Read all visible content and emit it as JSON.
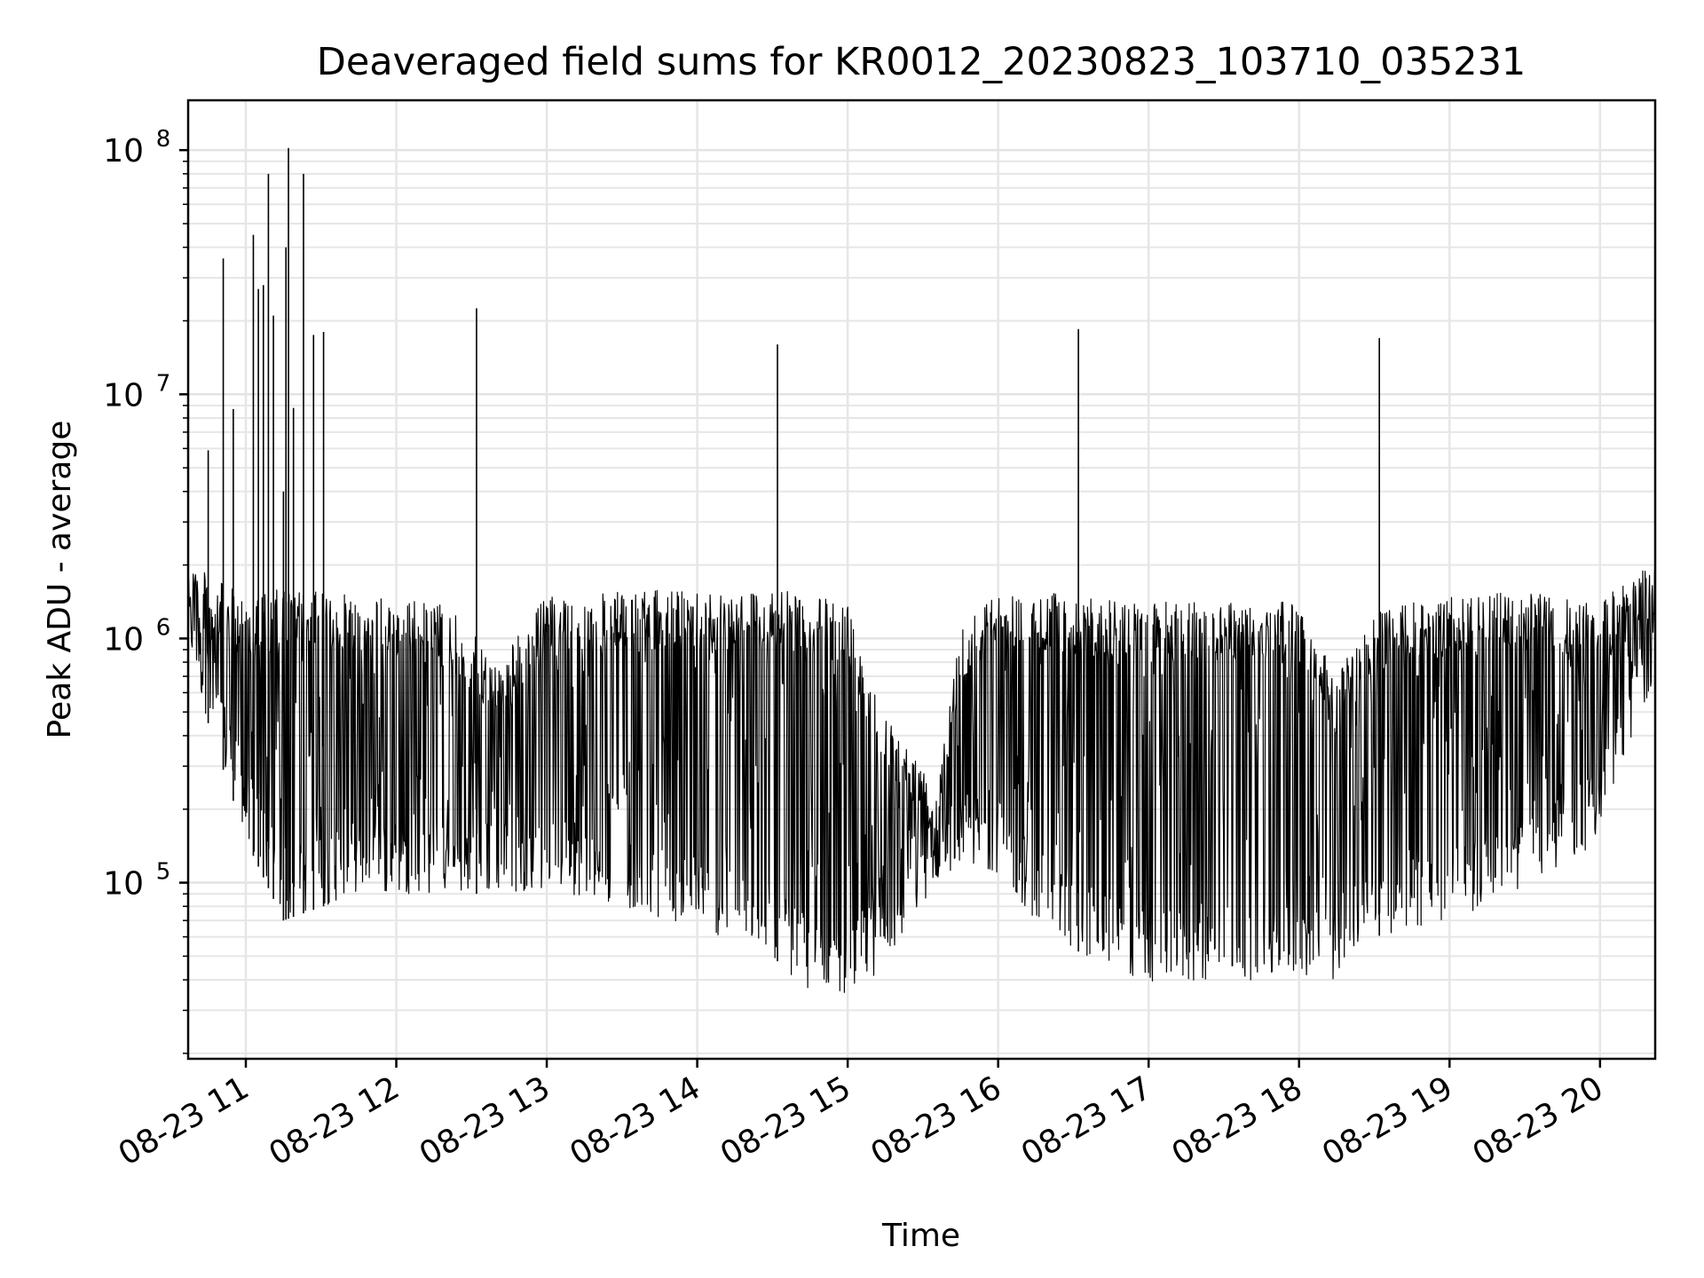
{
  "chart_data": {
    "type": "line",
    "title": "Deaveraged field sums for KR0012_20230823_103710_035231",
    "xlabel": "Time",
    "ylabel": "Peak ADU - average",
    "yscale": "log",
    "xlim": [
      "2023-08-23 10:37",
      "2023-08-23 20:22"
    ],
    "ylim": [
      19000,
      160000000
    ],
    "grid": true,
    "line_color": "#000000",
    "x_ticks": [
      {
        "t": "2023-08-23 11:00",
        "label": "08-23 11"
      },
      {
        "t": "2023-08-23 12:00",
        "label": "08-23 12"
      },
      {
        "t": "2023-08-23 13:00",
        "label": "08-23 13"
      },
      {
        "t": "2023-08-23 14:00",
        "label": "08-23 14"
      },
      {
        "t": "2023-08-23 15:00",
        "label": "08-23 15"
      },
      {
        "t": "2023-08-23 16:00",
        "label": "08-23 16"
      },
      {
        "t": "2023-08-23 17:00",
        "label": "08-23 17"
      },
      {
        "t": "2023-08-23 18:00",
        "label": "08-23 18"
      },
      {
        "t": "2023-08-23 19:00",
        "label": "08-23 19"
      },
      {
        "t": "2023-08-23 20:00",
        "label": "08-23 20"
      }
    ],
    "y_ticks": [
      {
        "value": 100000,
        "base": "10",
        "exp": "5"
      },
      {
        "value": 1000000,
        "base": "10",
        "exp": "6"
      },
      {
        "value": 10000000,
        "base": "10",
        "exp": "7"
      },
      {
        "value": 100000000,
        "base": "10",
        "exp": "8"
      }
    ],
    "envelope_profile": [
      {
        "t": "2023-08-23 10:37",
        "hi": 2300000,
        "lo": 900000
      },
      {
        "t": "2023-08-23 10:45",
        "hi": 1800000,
        "lo": 450000
      },
      {
        "t": "2023-08-23 11:00",
        "hi": 1500000,
        "lo": 150000
      },
      {
        "t": "2023-08-23 11:15",
        "hi": 1600000,
        "lo": 70000
      },
      {
        "t": "2023-08-23 11:45",
        "hi": 1500000,
        "lo": 90000
      },
      {
        "t": "2023-08-23 12:20",
        "hi": 1400000,
        "lo": 90000
      },
      {
        "t": "2023-08-23 12:40",
        "hi": 800000,
        "lo": 90000
      },
      {
        "t": "2023-08-23 13:00",
        "hi": 1500000,
        "lo": 95000
      },
      {
        "t": "2023-08-23 13:30",
        "hi": 1550000,
        "lo": 80000
      },
      {
        "t": "2023-08-23 14:00",
        "hi": 1600000,
        "lo": 65000
      },
      {
        "t": "2023-08-23 14:30",
        "hi": 1600000,
        "lo": 50000
      },
      {
        "t": "2023-08-23 14:45",
        "hi": 1500000,
        "lo": 35000
      },
      {
        "t": "2023-08-23 15:00",
        "hi": 1400000,
        "lo": 35000
      },
      {
        "t": "2023-08-23 15:15",
        "hi": 500000,
        "lo": 45000
      },
      {
        "t": "2023-08-23 15:35",
        "hi": 250000,
        "lo": 100000
      },
      {
        "t": "2023-08-23 15:45",
        "hi": 1200000,
        "lo": 120000
      },
      {
        "t": "2023-08-23 16:00",
        "hi": 1550000,
        "lo": 110000
      },
      {
        "t": "2023-08-23 16:20",
        "hi": 1550000,
        "lo": 60000
      },
      {
        "t": "2023-08-23 16:45",
        "hi": 1450000,
        "lo": 45000
      },
      {
        "t": "2023-08-23 17:00",
        "hi": 1400000,
        "lo": 38000
      },
      {
        "t": "2023-08-23 17:30",
        "hi": 1450000,
        "lo": 40000
      },
      {
        "t": "2023-08-23 18:00",
        "hi": 1400000,
        "lo": 40000
      },
      {
        "t": "2023-08-23 18:15",
        "hi": 700000,
        "lo": 40000
      },
      {
        "t": "2023-08-23 18:30",
        "hi": 1300000,
        "lo": 60000
      },
      {
        "t": "2023-08-23 19:00",
        "hi": 1500000,
        "lo": 70000
      },
      {
        "t": "2023-08-23 19:30",
        "hi": 1550000,
        "lo": 90000
      },
      {
        "t": "2023-08-23 20:00",
        "hi": 1400000,
        "lo": 150000
      },
      {
        "t": "2023-08-23 20:22",
        "hi": 2200000,
        "lo": 700000
      }
    ],
    "spikes": [
      {
        "t": "2023-08-23 10:45",
        "y": 5900000
      },
      {
        "t": "2023-08-23 10:51",
        "y": 36000000
      },
      {
        "t": "2023-08-23 10:55",
        "y": 8700000
      },
      {
        "t": "2023-08-23 11:03",
        "y": 45000000
      },
      {
        "t": "2023-08-23 11:05",
        "y": 27000000
      },
      {
        "t": "2023-08-23 11:07",
        "y": 28000000
      },
      {
        "t": "2023-08-23 11:09",
        "y": 80000000
      },
      {
        "t": "2023-08-23 11:11",
        "y": 21000000
      },
      {
        "t": "2023-08-23 11:15",
        "y": 4000000
      },
      {
        "t": "2023-08-23 11:16",
        "y": 40000000
      },
      {
        "t": "2023-08-23 11:17",
        "y": 102000000
      },
      {
        "t": "2023-08-23 11:19",
        "y": 8800000
      },
      {
        "t": "2023-08-23 11:23",
        "y": 80000000
      },
      {
        "t": "2023-08-23 11:27",
        "y": 17500000
      },
      {
        "t": "2023-08-23 11:31",
        "y": 18000000
      },
      {
        "t": "2023-08-23 12:32",
        "y": 22500000
      },
      {
        "t": "2023-08-23 14:32",
        "y": 16000000
      },
      {
        "t": "2023-08-23 16:32",
        "y": 18500000
      },
      {
        "t": "2023-08-23 18:32",
        "y": 17000000
      }
    ]
  }
}
